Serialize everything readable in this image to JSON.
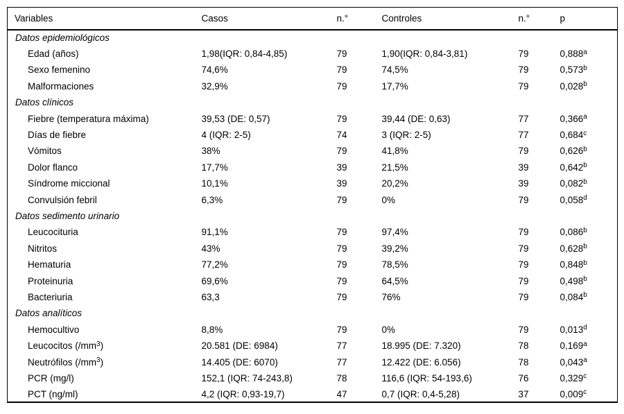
{
  "colors": {
    "background": "#ffffff",
    "text": "#000000",
    "border": "#000000"
  },
  "table": {
    "columns": [
      "Variables",
      "Casos",
      "n.°",
      "Controles",
      "n.°",
      "p"
    ],
    "rows": [
      {
        "type": "section",
        "label": "Datos epidemiológicos"
      },
      {
        "type": "item",
        "variable": "Edad (años)",
        "casos": "1,98(IQR: 0,84-4,85)",
        "n_casos": "79",
        "controles": "1,90(IQR: 0,84-3,81)",
        "n_controles": "79",
        "p": "0,888",
        "p_sup": "a"
      },
      {
        "type": "item",
        "variable": "Sexo femenino",
        "casos": "74,6%",
        "n_casos": "79",
        "controles": "74,5%",
        "n_controles": "79",
        "p": "0,573",
        "p_sup": "b"
      },
      {
        "type": "item",
        "variable": "Malformaciones",
        "casos": "32,9%",
        "n_casos": "79",
        "controles": "17,7%",
        "n_controles": "79",
        "p": "0,028",
        "p_sup": "b"
      },
      {
        "type": "section",
        "label": "Datos clínicos"
      },
      {
        "type": "item",
        "variable": "Fiebre (temperatura máxima)",
        "casos": "39,53 (DE: 0,57)",
        "n_casos": "79",
        "controles": "39,44 (DE: 0,63)",
        "n_controles": "77",
        "p": "0,366",
        "p_sup": "a"
      },
      {
        "type": "item",
        "variable": "Días de fiebre",
        "casos": "4 (IQR: 2-5)",
        "n_casos": "74",
        "controles": "3 (IQR: 2-5)",
        "n_controles": "77",
        "p": "0,684",
        "p_sup": "c"
      },
      {
        "type": "item",
        "variable": "Vómitos",
        "casos": "38%",
        "n_casos": "79",
        "controles": "41,8%",
        "n_controles": "79",
        "p": "0,626",
        "p_sup": "b"
      },
      {
        "type": "item",
        "variable": "Dolor flanco",
        "casos": "17,7%",
        "n_casos": "39",
        "controles": "21,5%",
        "n_controles": "39",
        "p": "0,642",
        "p_sup": "b"
      },
      {
        "type": "item",
        "variable": "Síndrome miccional",
        "casos": "10,1%",
        "n_casos": "39",
        "controles": "20,2%",
        "n_controles": "39",
        "p": "0,082",
        "p_sup": "b"
      },
      {
        "type": "item",
        "variable": "Convulsión febril",
        "casos": "6,3%",
        "n_casos": "79",
        "controles": "0%",
        "n_controles": "79",
        "p": "0,058",
        "p_sup": "d"
      },
      {
        "type": "section",
        "label": "Datos sedimento urinario"
      },
      {
        "type": "item",
        "variable": "Leucocituria",
        "casos": "91,1%",
        "n_casos": "79",
        "controles": "97,4%",
        "n_controles": "79",
        "p": "0,086",
        "p_sup": "b"
      },
      {
        "type": "item",
        "variable": "Nitritos",
        "casos": "43%",
        "n_casos": "79",
        "controles": "39,2%",
        "n_controles": "79",
        "p": "0,628",
        "p_sup": "b"
      },
      {
        "type": "item",
        "variable": "Hematuria",
        "casos": "77,2%",
        "n_casos": "79",
        "controles": "78,5%",
        "n_controles": "79",
        "p": "0,848",
        "p_sup": "b"
      },
      {
        "type": "item",
        "variable": "Proteinuria",
        "casos": "69,6%",
        "n_casos": "79",
        "controles": "64,5%",
        "n_controles": "79",
        "p": "0,498",
        "p_sup": "b"
      },
      {
        "type": "item",
        "variable": "Bacteriuria",
        "casos": "63,3",
        "n_casos": "79",
        "controles": "76%",
        "n_controles": "79",
        "p": "0,084",
        "p_sup": "b"
      },
      {
        "type": "section",
        "label": "Datos analíticos"
      },
      {
        "type": "item",
        "variable": "Hemocultivo",
        "casos": "8,8%",
        "n_casos": "79",
        "controles": "0%",
        "n_controles": "79",
        "p": "0,013",
        "p_sup": "d"
      },
      {
        "type": "item",
        "variable": "Leucocitos (/mm",
        "variable_sup": "3",
        "variable_tail": ")",
        "casos": "20.581 (DE: 6984)",
        "n_casos": "77",
        "controles": "18.995 (DE: 7.320)",
        "n_controles": "78",
        "p": "0,169",
        "p_sup": "a"
      },
      {
        "type": "item",
        "variable": "Neutrófilos (/mm",
        "variable_sup": "3",
        "variable_tail": ")",
        "casos": "14.405 (DE: 6070)",
        "n_casos": "77",
        "controles": "12.422 (DE: 6.056)",
        "n_controles": "78",
        "p": "0,043",
        "p_sup": "a"
      },
      {
        "type": "item",
        "variable": "PCR (mg/l)",
        "casos": "152,1 (IQR: 74-243,8)",
        "n_casos": "78",
        "controles": "116,6 (IQR: 54-193,6)",
        "n_controles": "76",
        "p": "0,329",
        "p_sup": "c"
      },
      {
        "type": "item",
        "variable": "PCT (ng/ml)",
        "casos": "4,2 (IQR: 0,93-19,7)",
        "n_casos": "47",
        "controles": "0,7 (IQR: 0,4-5,28)",
        "n_controles": "37",
        "p": "0,009",
        "p_sup": "c"
      }
    ]
  }
}
